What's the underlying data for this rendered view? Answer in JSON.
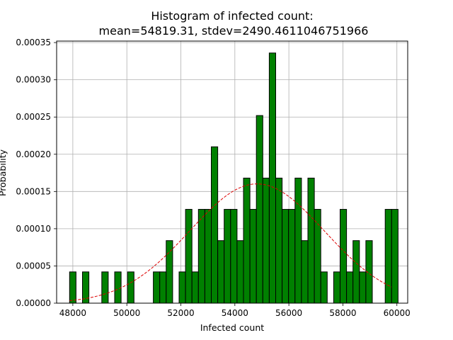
{
  "chart_data": {
    "type": "bar",
    "title_lines": [
      "Histogram of infected count:",
      "mean=54819.31, stdev=2490.4611046751966"
    ],
    "xlabel": "Infected count",
    "ylabel": "Probability",
    "xlim": [
      47400,
      60400
    ],
    "ylim": [
      0,
      0.000352
    ],
    "xticks": [
      48000,
      50000,
      52000,
      54000,
      56000,
      58000,
      60000
    ],
    "xtick_labels": [
      "48000",
      "50000",
      "52000",
      "54000",
      "56000",
      "58000",
      "60000"
    ],
    "yticks": [
      0,
      5e-05,
      0.0001,
      0.00015,
      0.0002,
      0.00025,
      0.0003,
      0.00035
    ],
    "ytick_labels": [
      "0.00000",
      "0.00005",
      "0.00010",
      "0.00015",
      "0.00020",
      "0.00025",
      "0.00030",
      "0.00035"
    ],
    "grid": true,
    "bar_color": "#008000",
    "bar_edge_color": "#000000",
    "bin_start": 47880,
    "bin_width": 238.5,
    "values": [
      4.2e-05,
      0,
      4.2e-05,
      0,
      0,
      4.2e-05,
      0,
      4.2e-05,
      0,
      4.2e-05,
      0,
      0,
      0,
      4.2e-05,
      4.2e-05,
      8.4e-05,
      0,
      4.2e-05,
      0.000126,
      4.2e-05,
      0.000126,
      0.000126,
      0.00021,
      8.4e-05,
      0.000126,
      0.000126,
      8.4e-05,
      0.000168,
      0.000126,
      0.000252,
      0.000168,
      0.000336,
      0.000168,
      0.000126,
      0.000126,
      0.000168,
      8.4e-05,
      0.000168,
      0.000126,
      4.2e-05,
      0,
      4.2e-05,
      0.000126,
      4.2e-05,
      8.4e-05,
      4.2e-05,
      8.4e-05,
      0,
      0,
      0.000126,
      0.000126
    ],
    "curve": {
      "mean": 54819.31,
      "stdev": 2490.4611046751966,
      "color": "#dd0000",
      "style": "dashed",
      "x_start": 47880,
      "x_end": 59800
    }
  }
}
